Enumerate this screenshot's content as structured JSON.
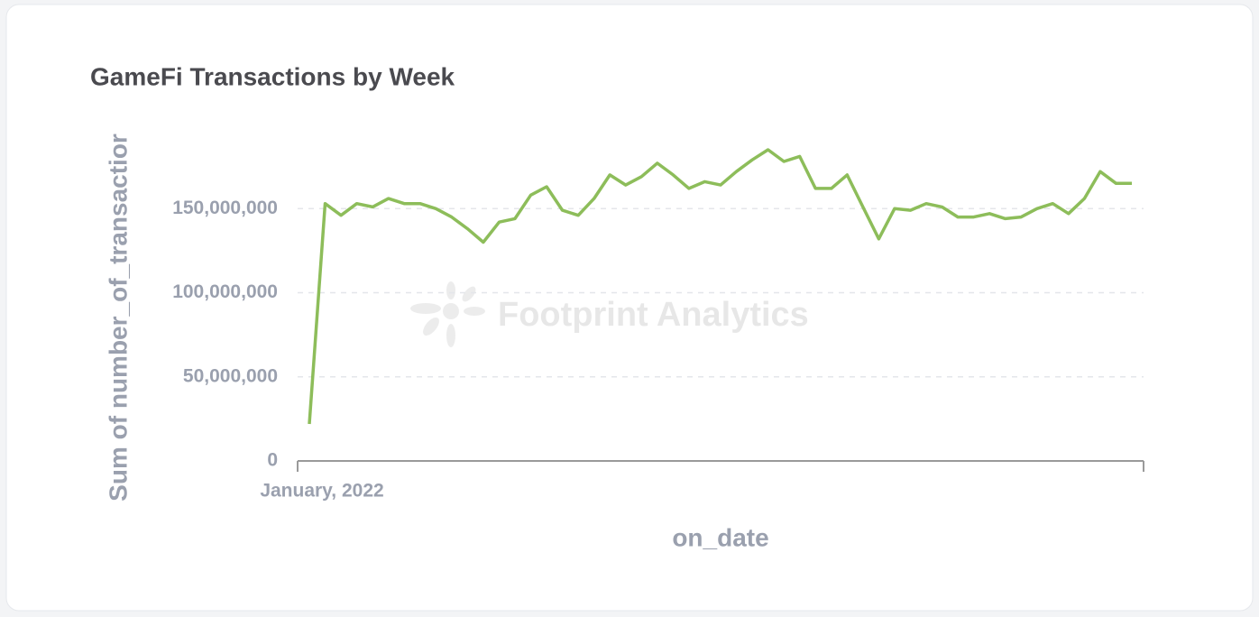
{
  "chart_data": {
    "type": "line",
    "title": "GameFi Transactions by Week",
    "x_label": "on_date",
    "y_label": "Sum of number_of_transactior",
    "watermark": "Footprint Analytics",
    "categories": [
      "January, 2022",
      null,
      null,
      null,
      null,
      null,
      null,
      null,
      null,
      null,
      null,
      null,
      null,
      null,
      null,
      null,
      null,
      null,
      null,
      null,
      null,
      null,
      null,
      null,
      null,
      null,
      null,
      null,
      null,
      null,
      null,
      null,
      null,
      null,
      null,
      null,
      null,
      null,
      null,
      null,
      null,
      null,
      null,
      null,
      null,
      null,
      null,
      null,
      null,
      null,
      null,
      null,
      null
    ],
    "values": [
      22000000,
      153000000,
      146000000,
      153000000,
      151000000,
      156000000,
      153000000,
      153000000,
      150000000,
      145000000,
      138000000,
      130000000,
      142000000,
      144000000,
      158000000,
      163000000,
      149000000,
      146000000,
      156000000,
      170000000,
      164000000,
      169000000,
      177000000,
      170000000,
      162000000,
      166000000,
      164000000,
      172000000,
      179000000,
      185000000,
      178000000,
      181000000,
      162000000,
      162000000,
      170000000,
      151000000,
      132000000,
      150000000,
      149000000,
      153000000,
      151000000,
      145000000,
      145000000,
      147000000,
      144000000,
      145000000,
      150000000,
      153000000,
      147000000,
      156000000,
      172000000,
      165000000,
      165000000
    ],
    "color": "#8dbd5a",
    "ylim": [
      0,
      200000000
    ],
    "yticks": [
      0,
      {
        "value": 50000000,
        "label": "50,000,000"
      },
      {
        "value": 100000000,
        "label": "100,000,000"
      },
      {
        "value": 150000000,
        "label": "150,000,000"
      }
    ],
    "grid": true
  }
}
